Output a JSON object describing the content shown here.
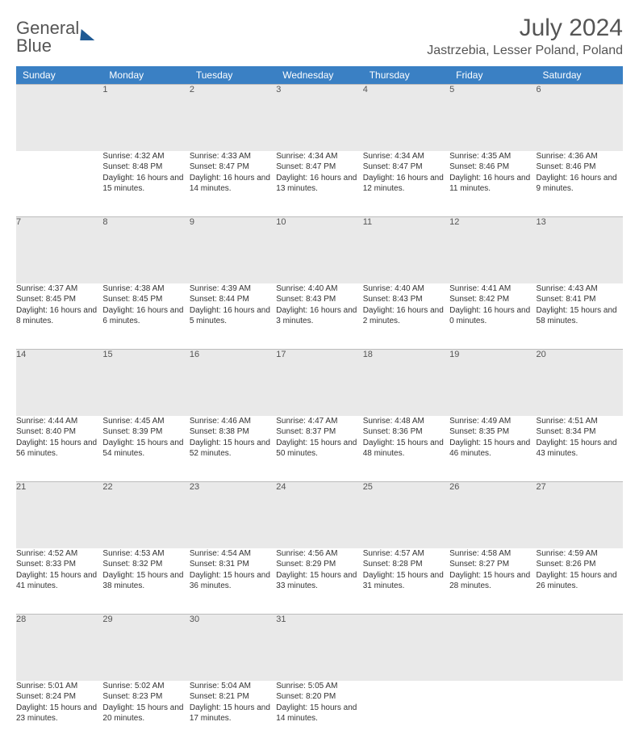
{
  "brand": {
    "name1": "General",
    "name2": "Blue"
  },
  "title": "July 2024",
  "location": "Jastrzebia, Lesser Poland, Poland",
  "colors": {
    "header_bg": "#3a80c4",
    "row_bg": "#e9e9e9",
    "border": "#bcbcbc",
    "text": "#333333"
  },
  "weekdays": [
    "Sunday",
    "Monday",
    "Tuesday",
    "Wednesday",
    "Thursday",
    "Friday",
    "Saturday"
  ],
  "first_weekday_index": 1,
  "days": [
    {
      "n": 1,
      "sr": "4:32 AM",
      "ss": "8:48 PM",
      "dl": "16 hours and 15 minutes."
    },
    {
      "n": 2,
      "sr": "4:33 AM",
      "ss": "8:47 PM",
      "dl": "16 hours and 14 minutes."
    },
    {
      "n": 3,
      "sr": "4:34 AM",
      "ss": "8:47 PM",
      "dl": "16 hours and 13 minutes."
    },
    {
      "n": 4,
      "sr": "4:34 AM",
      "ss": "8:47 PM",
      "dl": "16 hours and 12 minutes."
    },
    {
      "n": 5,
      "sr": "4:35 AM",
      "ss": "8:46 PM",
      "dl": "16 hours and 11 minutes."
    },
    {
      "n": 6,
      "sr": "4:36 AM",
      "ss": "8:46 PM",
      "dl": "16 hours and 9 minutes."
    },
    {
      "n": 7,
      "sr": "4:37 AM",
      "ss": "8:45 PM",
      "dl": "16 hours and 8 minutes."
    },
    {
      "n": 8,
      "sr": "4:38 AM",
      "ss": "8:45 PM",
      "dl": "16 hours and 6 minutes."
    },
    {
      "n": 9,
      "sr": "4:39 AM",
      "ss": "8:44 PM",
      "dl": "16 hours and 5 minutes."
    },
    {
      "n": 10,
      "sr": "4:40 AM",
      "ss": "8:43 PM",
      "dl": "16 hours and 3 minutes."
    },
    {
      "n": 11,
      "sr": "4:40 AM",
      "ss": "8:43 PM",
      "dl": "16 hours and 2 minutes."
    },
    {
      "n": 12,
      "sr": "4:41 AM",
      "ss": "8:42 PM",
      "dl": "16 hours and 0 minutes."
    },
    {
      "n": 13,
      "sr": "4:43 AM",
      "ss": "8:41 PM",
      "dl": "15 hours and 58 minutes."
    },
    {
      "n": 14,
      "sr": "4:44 AM",
      "ss": "8:40 PM",
      "dl": "15 hours and 56 minutes."
    },
    {
      "n": 15,
      "sr": "4:45 AM",
      "ss": "8:39 PM",
      "dl": "15 hours and 54 minutes."
    },
    {
      "n": 16,
      "sr": "4:46 AM",
      "ss": "8:38 PM",
      "dl": "15 hours and 52 minutes."
    },
    {
      "n": 17,
      "sr": "4:47 AM",
      "ss": "8:37 PM",
      "dl": "15 hours and 50 minutes."
    },
    {
      "n": 18,
      "sr": "4:48 AM",
      "ss": "8:36 PM",
      "dl": "15 hours and 48 minutes."
    },
    {
      "n": 19,
      "sr": "4:49 AM",
      "ss": "8:35 PM",
      "dl": "15 hours and 46 minutes."
    },
    {
      "n": 20,
      "sr": "4:51 AM",
      "ss": "8:34 PM",
      "dl": "15 hours and 43 minutes."
    },
    {
      "n": 21,
      "sr": "4:52 AM",
      "ss": "8:33 PM",
      "dl": "15 hours and 41 minutes."
    },
    {
      "n": 22,
      "sr": "4:53 AM",
      "ss": "8:32 PM",
      "dl": "15 hours and 38 minutes."
    },
    {
      "n": 23,
      "sr": "4:54 AM",
      "ss": "8:31 PM",
      "dl": "15 hours and 36 minutes."
    },
    {
      "n": 24,
      "sr": "4:56 AM",
      "ss": "8:29 PM",
      "dl": "15 hours and 33 minutes."
    },
    {
      "n": 25,
      "sr": "4:57 AM",
      "ss": "8:28 PM",
      "dl": "15 hours and 31 minutes."
    },
    {
      "n": 26,
      "sr": "4:58 AM",
      "ss": "8:27 PM",
      "dl": "15 hours and 28 minutes."
    },
    {
      "n": 27,
      "sr": "4:59 AM",
      "ss": "8:26 PM",
      "dl": "15 hours and 26 minutes."
    },
    {
      "n": 28,
      "sr": "5:01 AM",
      "ss": "8:24 PM",
      "dl": "15 hours and 23 minutes."
    },
    {
      "n": 29,
      "sr": "5:02 AM",
      "ss": "8:23 PM",
      "dl": "15 hours and 20 minutes."
    },
    {
      "n": 30,
      "sr": "5:04 AM",
      "ss": "8:21 PM",
      "dl": "15 hours and 17 minutes."
    },
    {
      "n": 31,
      "sr": "5:05 AM",
      "ss": "8:20 PM",
      "dl": "15 hours and 14 minutes."
    }
  ],
  "labels": {
    "sunrise": "Sunrise:",
    "sunset": "Sunset:",
    "daylight": "Daylight:"
  }
}
